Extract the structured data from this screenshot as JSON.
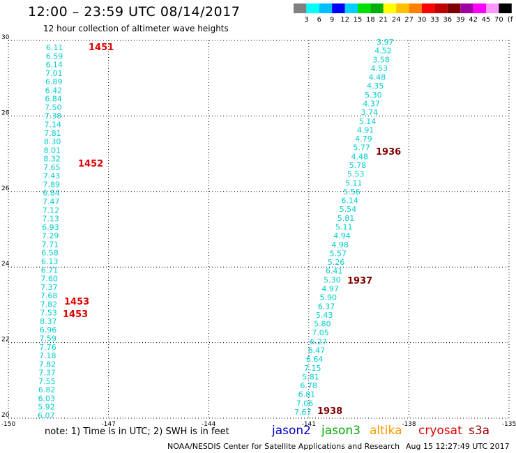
{
  "header": {
    "title": "12:00 – 23:59 UTC 08/14/2017",
    "subtitle": "12 hour collection of altimeter wave heights"
  },
  "colorbar": {
    "colors": [
      "#808080",
      "#00ffff",
      "#00bfff",
      "#0000ff",
      "#00cfff",
      "#00e000",
      "#00b000",
      "#ffff00",
      "#ffc000",
      "#ff8000",
      "#ff0000",
      "#c00000",
      "#800000",
      "#a000a0",
      "#ff00ff",
      "#ff99ff",
      "#000000"
    ],
    "labels": [
      "3",
      "6",
      "9",
      "12",
      "15",
      "18",
      "21",
      "24",
      "27",
      "30",
      "33",
      "36",
      "39",
      "42",
      "45",
      "70"
    ],
    "unit": "(ft)"
  },
  "map": {
    "lon_range": [
      -150,
      -135
    ],
    "lat_range": [
      20,
      30
    ],
    "x_ticks": [
      "-150",
      "-147",
      "-144",
      "-141",
      "-138",
      "-135"
    ],
    "y_ticks": [
      "20",
      "22",
      "24",
      "26",
      "28",
      "30"
    ],
    "value_color": "#00cccc",
    "pass1_labels": [
      {
        "text": "1451",
        "color": "#e00000"
      },
      {
        "text": "1452",
        "color": "#e00000"
      },
      {
        "text": "1453",
        "color": "#e00000"
      },
      {
        "text": "1453",
        "color": "#e00000"
      }
    ],
    "pass2_labels": [
      {
        "text": "1936",
        "color": "#800000"
      },
      {
        "text": "1937",
        "color": "#800000"
      },
      {
        "text": "1938",
        "color": "#800000"
      }
    ],
    "pass1_values": [
      "6.11",
      "6.59",
      "6.14",
      "7.01",
      "6.89",
      "6.42",
      "6.84",
      "7.50",
      "7.38",
      "7.14",
      "7.81",
      "8.30",
      "8.01",
      "8.32",
      "7.65",
      "7.43",
      "7.89",
      "6.84",
      "7.47",
      "7.12",
      "7.13",
      "6.93",
      "7.29",
      "7.71",
      "6.58",
      "6.13",
      "6.71",
      "7.60",
      "7.37",
      "7.68",
      "7.82",
      "7.53",
      "8.37",
      "6.96",
      "7.59",
      "7.76",
      "7.18",
      "7.82",
      "7.37",
      "7.55",
      "6.82",
      "6.03",
      "5.92",
      "6.07"
    ],
    "pass2_values": [
      "3.97",
      "4.52",
      "3.58",
      "4.53",
      "4.48",
      "4.35",
      "5.30",
      "4.37",
      "3.74",
      "5.14",
      "4.91",
      "4.79",
      "5.77",
      "4.48",
      "5.78",
      "5.53",
      "5.11",
      "5.56",
      "6.14",
      "5.54",
      "5.81",
      "5.11",
      "4.94",
      "4.98",
      "5.57",
      "5.26",
      "6.41",
      "5.30",
      "4.97",
      "5.90",
      "6.37",
      "5.43",
      "5.80",
      "7.05",
      "6.27",
      "6.47",
      "6.64",
      "7.15",
      "5.81",
      "6.78",
      "6.81",
      "7.06",
      "7.67"
    ]
  },
  "footer": {
    "note": "note:  1) Time is in UTC;  2) SWH is in feet",
    "satellites": [
      {
        "name": "jason2",
        "color": "#0000cc"
      },
      {
        "name": "jason3",
        "color": "#00aa00"
      },
      {
        "name": "altika",
        "color": "#ff9900"
      },
      {
        "name": "cryosat",
        "color": "#dd0000"
      },
      {
        "name": "s3a",
        "color": "#990000"
      }
    ],
    "credit": "NOAA/NESDIS Center for Satellite Applications and Research",
    "timestamp": "Aug 15 12:27:49 UTC 2017"
  }
}
